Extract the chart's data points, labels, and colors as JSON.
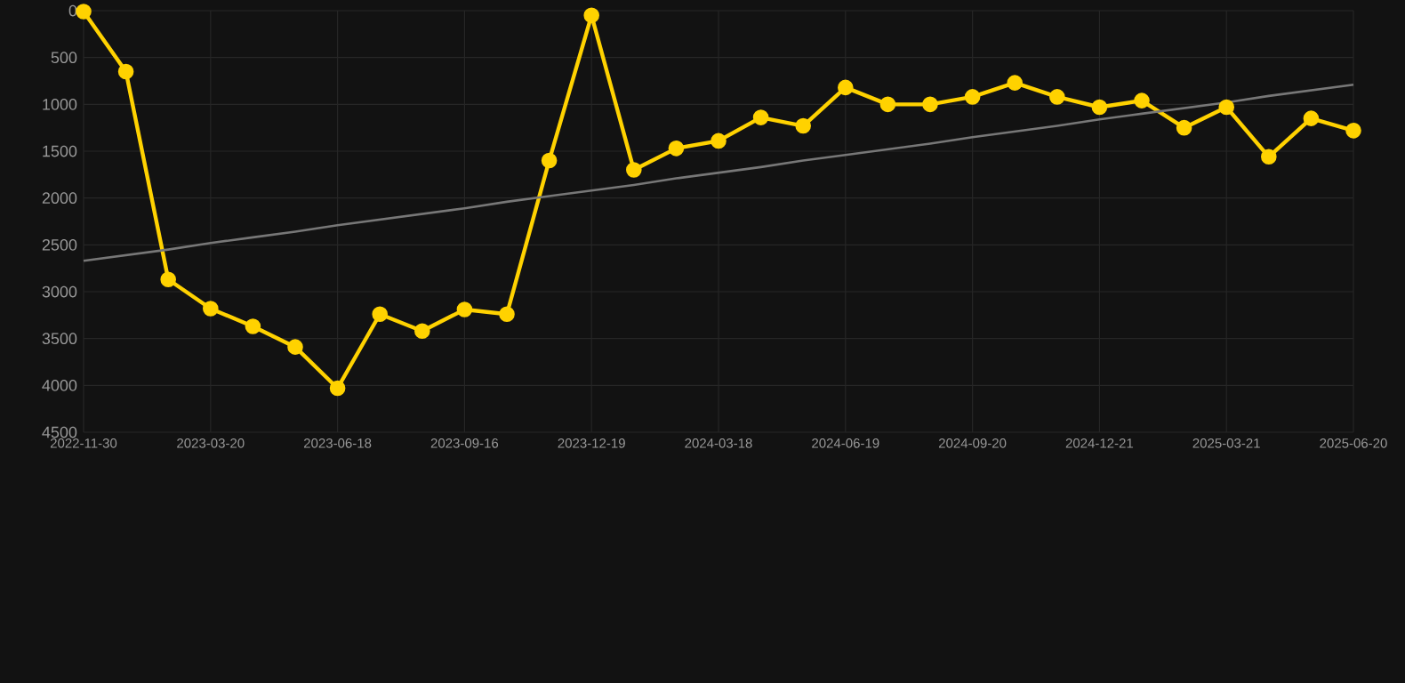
{
  "chart_data": {
    "type": "line",
    "categories": [
      "2022-11-30",
      null,
      null,
      "2023-03-20",
      null,
      null,
      "2023-06-18",
      null,
      null,
      "2023-09-16",
      null,
      null,
      "2023-12-19",
      null,
      null,
      "2024-03-18",
      null,
      null,
      "2024-06-19",
      null,
      null,
      "2024-09-20",
      null,
      null,
      "2024-12-21",
      null,
      null,
      "2025-03-21",
      null,
      null,
      "2025-06-20"
    ],
    "series": [
      {
        "color": "#ffd200",
        "marker": "circle",
        "values": [
          10,
          650,
          2870,
          3180,
          3370,
          3590,
          4030,
          3240,
          3420,
          3190,
          3240,
          1600,
          50,
          1700,
          1470,
          1390,
          1140,
          1230,
          820,
          1000,
          1000,
          920,
          770,
          920,
          1030,
          960,
          1250,
          1030,
          1560,
          1150,
          1280
        ]
      },
      {
        "type": "line",
        "color": "#777777",
        "marker": "none",
        "values": [
          2670,
          2610,
          2550,
          2480,
          2420,
          2360,
          2290,
          2230,
          2170,
          2110,
          2040,
          1980,
          1920,
          1860,
          1790,
          1730,
          1670,
          1600,
          1540,
          1480,
          1420,
          1350,
          1290,
          1230,
          1160,
          1100,
          1040,
          980,
          910,
          850,
          790
        ]
      }
    ],
    "ylim": [
      4500,
      0
    ],
    "yticks": [
      0,
      500,
      1000,
      1500,
      2000,
      2500,
      3000,
      3500,
      4000,
      4500
    ],
    "grid": true,
    "line_style": "solid"
  }
}
